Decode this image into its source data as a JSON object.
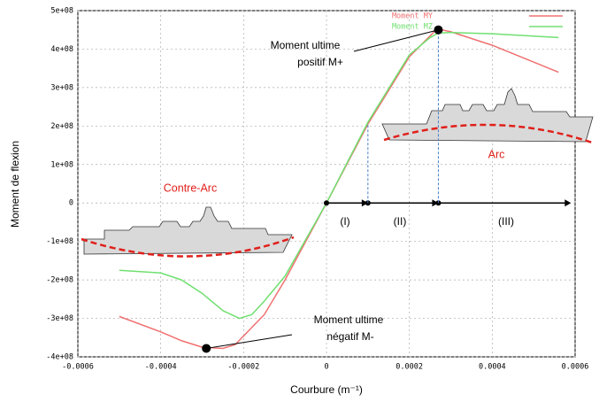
{
  "chart_data": {
    "type": "line",
    "xlabel": "Courbure (m⁻¹)",
    "ylabel": "Moment de flexion",
    "xlim": [
      -0.0006,
      0.0006
    ],
    "ylim": [
      -400000000,
      500000000
    ],
    "xticks": [
      -0.0006,
      -0.0004,
      -0.0002,
      0,
      0.0002,
      0.0004,
      0.0006
    ],
    "yticks": [
      {
        "value": -400000000,
        "label": "-4e+08"
      },
      {
        "value": -300000000,
        "label": "-3e+08"
      },
      {
        "value": -200000000,
        "label": "-2e+08"
      },
      {
        "value": -100000000,
        "label": "-1e+08"
      },
      0,
      {
        "value": 100000000,
        "label": "1e+08"
      },
      {
        "value": 200000000,
        "label": "2e+08"
      },
      {
        "value": 300000000,
        "label": "3e+08"
      },
      {
        "value": 400000000,
        "label": "4e+08"
      },
      {
        "value": 500000000,
        "label": "5e+08"
      }
    ],
    "grid": true,
    "legend": "top-right",
    "series": [
      {
        "name": "Moment MY",
        "color": "#f07070",
        "x": [
          -0.0005,
          -0.0004,
          -0.00035,
          -0.0003,
          -0.00025,
          -0.00022,
          -0.00015,
          -0.0001,
          0,
          0.0001,
          0.0002,
          0.00026,
          0.00027,
          0.0003,
          0.0004,
          0.00056
        ],
        "values": [
          -295000000,
          -335000000,
          -358000000,
          -375000000,
          -378000000,
          -368000000,
          -290000000,
          -200000000,
          0,
          205000000,
          380000000,
          445000000,
          452000000,
          445000000,
          410000000,
          340000000
        ]
      },
      {
        "name": "Moment MZ",
        "color": "#70e070",
        "x": [
          -0.0005,
          -0.0004,
          -0.00035,
          -0.0003,
          -0.00025,
          -0.00021,
          -0.00018,
          -0.00015,
          -0.0001,
          0,
          0.0001,
          0.0002,
          0.00025,
          0.00027,
          0.0003,
          0.0004,
          0.00056
        ],
        "values": [
          -175000000,
          -182000000,
          -200000000,
          -235000000,
          -280000000,
          -300000000,
          -290000000,
          -255000000,
          -190000000,
          0,
          210000000,
          385000000,
          430000000,
          442000000,
          443000000,
          440000000,
          430000000
        ]
      }
    ],
    "points": [
      {
        "x": 0.00027,
        "y": 450000000
      },
      {
        "x": -0.00029,
        "y": -378000000
      }
    ],
    "phase_bounds": [
      0,
      0.0001,
      0.00027,
      0.00059
    ],
    "annotations": [
      {
        "lines": [
          "Moment ultime",
          "positif M+"
        ]
      },
      {
        "lines": [
          "Moment ultime",
          "négatif M-"
        ]
      },
      {
        "text": "Contre-Arc"
      },
      {
        "text": "Arc"
      },
      {
        "text": "(I)"
      },
      {
        "text": "(II)"
      },
      {
        "text": "(III)"
      }
    ]
  }
}
